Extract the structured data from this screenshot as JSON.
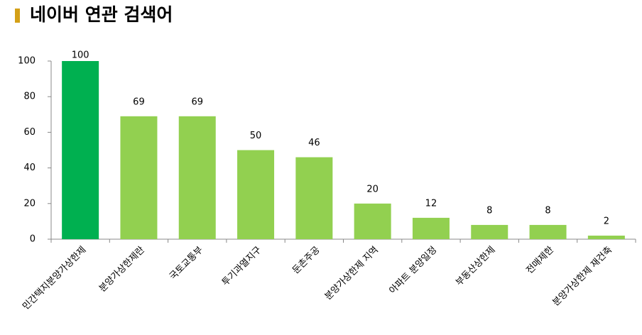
{
  "chart_data": {
    "type": "bar",
    "title": "네이버 연관 검색어",
    "categories": [
      "민간택지분양가상한제",
      "분양가상한제란",
      "국토교통부",
      "투기과열지구",
      "둔촌주공",
      "분양가상한제 지역",
      "아파트 분양일정",
      "부동산상한제",
      "전매제한",
      "분양가상한제 재건축"
    ],
    "values": [
      100,
      69,
      69,
      50,
      46,
      20,
      12,
      8,
      8,
      2
    ],
    "colors": [
      "#00b050",
      "#92d050",
      "#92d050",
      "#92d050",
      "#92d050",
      "#92d050",
      "#92d050",
      "#92d050",
      "#92d050",
      "#92d050"
    ],
    "ylim": [
      0,
      100
    ],
    "yticks": [
      0,
      20,
      40,
      60,
      80,
      100
    ],
    "grid": false
  }
}
